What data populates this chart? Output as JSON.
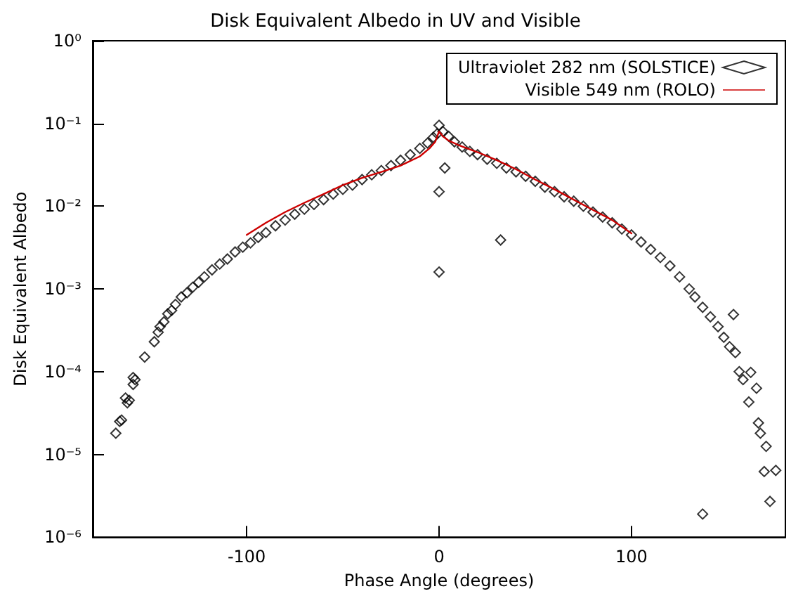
{
  "chart_data": {
    "type": "scatter",
    "title": "Disk Equivalent Albedo in UV and Visible",
    "xlabel": "Phase Angle (degrees)",
    "ylabel": "Disk Equivalent Albedo",
    "xlim": [
      -180,
      180
    ],
    "xticks": [
      -100,
      0,
      100
    ],
    "ylim": [
      1e-06,
      1
    ],
    "log": "y",
    "yticks": [
      {
        "value": 1e-06,
        "label": "10⁻⁶"
      },
      {
        "value": 1e-05,
        "label": "10⁻⁵"
      },
      {
        "value": 0.0001,
        "label": "10⁻⁴"
      },
      {
        "value": 0.001,
        "label": "10⁻³"
      },
      {
        "value": 0.01,
        "label": "10⁻²"
      },
      {
        "value": 0.1,
        "label": "10⁻¹"
      },
      {
        "value": 1,
        "label": "10⁰"
      }
    ],
    "grid": false,
    "legend": "top right",
    "series": [
      {
        "name": "Ultraviolet 282 nm (SOLSTICE)",
        "marker": "diamond",
        "color": "#000000",
        "x": [
          -168,
          -166,
          -165,
          -163,
          -162,
          -161,
          -159,
          -159,
          -158,
          -153,
          -148,
          -146,
          -145,
          -143,
          -141,
          -139,
          -137,
          -134,
          -131,
          -128,
          -125,
          -122,
          -118,
          -114,
          -110,
          -106,
          -102,
          -98,
          -94,
          -90,
          -85,
          -80,
          -75,
          -70,
          -65,
          -60,
          -55,
          -50,
          -45,
          -40,
          -35,
          -30,
          -25,
          -20,
          -15,
          -10,
          -6,
          -3,
          -1,
          0,
          2,
          3,
          0,
          0,
          32,
          5,
          8,
          12,
          16,
          20,
          25,
          30,
          35,
          40,
          45,
          50,
          55,
          60,
          65,
          70,
          75,
          80,
          85,
          90,
          95,
          100,
          105,
          110,
          115,
          120,
          125,
          130,
          133,
          137,
          141,
          145,
          148,
          151,
          154,
          156,
          153,
          158,
          161,
          162,
          165,
          166,
          167,
          170,
          169,
          175,
          172,
          137
        ],
        "values": [
          1.8e-05,
          2.5e-05,
          2.6e-05,
          4.8e-05,
          4.2e-05,
          4.5e-05,
          8.5e-05,
          7e-05,
          8e-05,
          0.00015,
          0.00023,
          0.0003,
          0.00035,
          0.0004,
          0.0005,
          0.00055,
          0.00065,
          0.0008,
          0.0009,
          0.00105,
          0.0012,
          0.0014,
          0.0017,
          0.002,
          0.0023,
          0.0028,
          0.0032,
          0.0036,
          0.0042,
          0.0048,
          0.0058,
          0.0068,
          0.008,
          0.0092,
          0.0105,
          0.012,
          0.014,
          0.016,
          0.018,
          0.021,
          0.024,
          0.027,
          0.031,
          0.036,
          0.042,
          0.05,
          0.058,
          0.068,
          0.075,
          0.095,
          0.08,
          0.029,
          0.015,
          0.0016,
          0.0039,
          0.07,
          0.06,
          0.052,
          0.046,
          0.042,
          0.037,
          0.033,
          0.029,
          0.026,
          0.023,
          0.02,
          0.017,
          0.015,
          0.013,
          0.0115,
          0.01,
          0.0085,
          0.0074,
          0.0063,
          0.0053,
          0.0045,
          0.0037,
          0.003,
          0.0024,
          0.0019,
          0.0014,
          0.001,
          0.0008,
          0.0006,
          0.00046,
          0.00035,
          0.00026,
          0.0002,
          0.00017,
          0.0001,
          0.00049,
          8e-05,
          4.3e-05,
          9.8e-05,
          6.3e-05,
          2.4e-05,
          1.8e-05,
          1.25e-05,
          6.2e-06,
          6.4e-06,
          2.7e-06,
          1.9e-06
        ]
      },
      {
        "name": "Visible 549 nm (ROLO)",
        "type": "line",
        "marker": "none",
        "color": "#cc0000",
        "x": [
          -100,
          -90,
          -80,
          -70,
          -60,
          -50,
          -40,
          -30,
          -20,
          -10,
          -5,
          -2,
          0,
          2,
          5,
          10,
          20,
          30,
          40,
          50,
          60,
          70,
          80,
          90,
          100
        ],
        "values": [
          0.0045,
          0.0063,
          0.0085,
          0.011,
          0.014,
          0.018,
          0.022,
          0.026,
          0.031,
          0.04,
          0.05,
          0.06,
          0.08,
          0.07,
          0.062,
          0.055,
          0.045,
          0.036,
          0.028,
          0.021,
          0.016,
          0.012,
          0.009,
          0.0068,
          0.0047
        ]
      }
    ]
  }
}
